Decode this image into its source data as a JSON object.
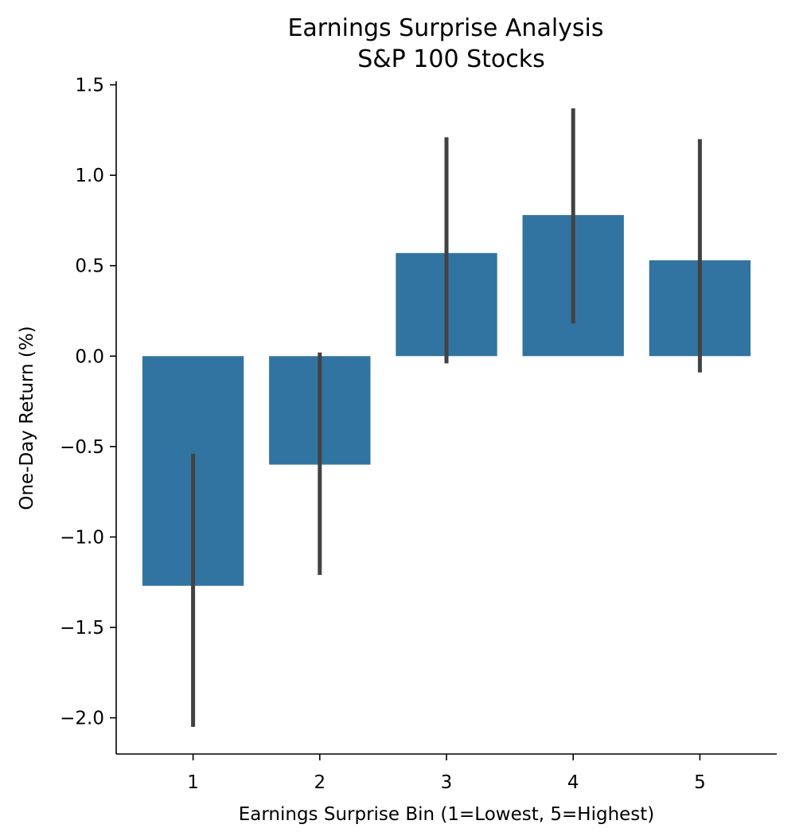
{
  "chart_data": {
    "type": "bar",
    "title": "Earnings Surprise Analysis",
    "subtitle": "S&P 100 Stocks",
    "xlabel": "Earnings Surprise Bin (1=Lowest, 5=Highest)",
    "ylabel": "One-Day Return (%)",
    "categories": [
      "1",
      "2",
      "3",
      "4",
      "5"
    ],
    "values": [
      -1.27,
      -0.6,
      0.57,
      0.78,
      0.53
    ],
    "error_low": [
      -2.05,
      -1.21,
      -0.04,
      0.18,
      -0.09
    ],
    "error_high": [
      -0.54,
      0.02,
      1.21,
      1.37,
      1.2
    ],
    "ylim": [
      -2.2,
      1.52
    ],
    "yticks": [
      1.5,
      1.0,
      0.5,
      0.0,
      -0.5,
      -1.0,
      -1.5,
      -2.0
    ],
    "ytick_labels": [
      "1.5",
      "1.0",
      "0.5",
      "0.0",
      "−0.5",
      "−1.0",
      "−1.5",
      "−2.0"
    ],
    "grid": false,
    "bar_color": "#3274a1",
    "error_color": "#424242"
  }
}
